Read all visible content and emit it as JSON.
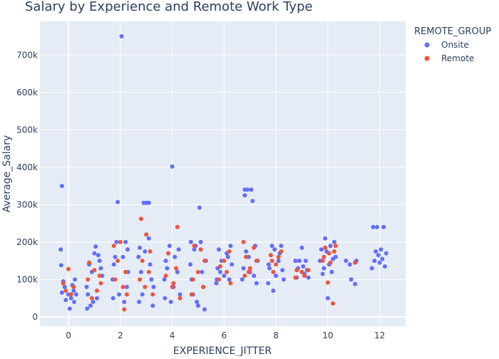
{
  "chart_data": {
    "type": "scatter",
    "title": "Salary by Experience and Remote Work Type",
    "xlabel": "EXPERIENCE_JITTER",
    "ylabel": "Average_Salary",
    "xlim": [
      -1.1,
      13.0
    ],
    "ylim": [
      -25000,
      790000
    ],
    "x_ticks": [
      0,
      2,
      4,
      6,
      8,
      10,
      12
    ],
    "y_ticks": [
      0,
      100000,
      200000,
      300000,
      400000,
      500000,
      600000,
      700000
    ],
    "y_tick_labels": [
      "0",
      "100k",
      "200k",
      "300k",
      "400k",
      "500k",
      "600k",
      "700k"
    ],
    "grid": true,
    "legend_position": "top-right",
    "legend_title": "REMOTE_GROUP",
    "series": [
      {
        "name": "Onsite",
        "color": "#636efa",
        "points": [
          [
            -0.25,
            350000
          ],
          [
            -0.3,
            180000
          ],
          [
            -0.28,
            138000
          ],
          [
            -0.2,
            95000
          ],
          [
            -0.15,
            80000
          ],
          [
            0.0,
            60000
          ],
          [
            0.1,
            50000
          ],
          [
            0.2,
            70000
          ],
          [
            0.25,
            100000
          ],
          [
            -0.1,
            45000
          ],
          [
            0.05,
            22000
          ],
          [
            0.15,
            85000
          ],
          [
            0.3,
            60000
          ],
          [
            -0.25,
            65000
          ],
          [
            0.22,
            40000
          ],
          [
            0.7,
            80000
          ],
          [
            0.8,
            140000
          ],
          [
            0.9,
            120000
          ],
          [
            1.0,
            170000
          ],
          [
            1.05,
            188000
          ],
          [
            1.2,
            150000
          ],
          [
            1.25,
            130000
          ],
          [
            0.75,
            60000
          ],
          [
            0.85,
            30000
          ],
          [
            1.1,
            50000
          ],
          [
            1.3,
            110000
          ],
          [
            0.95,
            40000
          ],
          [
            0.72,
            22000
          ],
          [
            1.15,
            165000
          ],
          [
            1.7,
            100000
          ],
          [
            1.75,
            140000
          ],
          [
            1.8,
            160000
          ],
          [
            1.85,
            200000
          ],
          [
            1.9,
            307000
          ],
          [
            2.05,
            750000
          ],
          [
            2.1,
            160000
          ],
          [
            2.2,
            200000
          ],
          [
            2.3,
            120000
          ],
          [
            1.95,
            60000
          ],
          [
            2.15,
            40000
          ],
          [
            2.25,
            80000
          ],
          [
            1.72,
            50000
          ],
          [
            2.28,
            180000
          ],
          [
            2.7,
            160000
          ],
          [
            2.75,
            185000
          ],
          [
            2.8,
            120000
          ],
          [
            2.85,
            60000
          ],
          [
            2.9,
            305000
          ],
          [
            3.0,
            305000
          ],
          [
            3.1,
            305000
          ],
          [
            3.1,
            210000
          ],
          [
            3.15,
            140000
          ],
          [
            3.2,
            100000
          ],
          [
            3.25,
            30000
          ],
          [
            2.72,
            40000
          ],
          [
            3.28,
            80000
          ],
          [
            2.95,
            175000
          ],
          [
            3.7,
            100000
          ],
          [
            3.75,
            150000
          ],
          [
            3.8,
            130000
          ],
          [
            3.85,
            170000
          ],
          [
            3.9,
            190000
          ],
          [
            4.0,
            402000
          ],
          [
            4.05,
            80000
          ],
          [
            4.1,
            160000
          ],
          [
            4.2,
            120000
          ],
          [
            4.3,
            60000
          ],
          [
            3.72,
            50000
          ],
          [
            4.25,
            180000
          ],
          [
            3.95,
            40000
          ],
          [
            4.7,
            140000
          ],
          [
            4.75,
            100000
          ],
          [
            4.8,
            60000
          ],
          [
            4.85,
            180000
          ],
          [
            4.9,
            190000
          ],
          [
            5.0,
            30000
          ],
          [
            5.05,
            292000
          ],
          [
            5.1,
            200000
          ],
          [
            5.15,
            120000
          ],
          [
            5.2,
            80000
          ],
          [
            5.25,
            20000
          ],
          [
            5.3,
            150000
          ],
          [
            4.72,
            200000
          ],
          [
            4.95,
            40000
          ],
          [
            5.7,
            90000
          ],
          [
            5.75,
            130000
          ],
          [
            5.8,
            180000
          ],
          [
            5.9,
            150000
          ],
          [
            6.0,
            110000
          ],
          [
            6.1,
            170000
          ],
          [
            6.2,
            100000
          ],
          [
            6.25,
            190000
          ],
          [
            6.3,
            140000
          ],
          [
            5.85,
            120000
          ],
          [
            6.15,
            160000
          ],
          [
            5.72,
            100000
          ],
          [
            6.7,
            100000
          ],
          [
            6.75,
            130000
          ],
          [
            6.8,
            340000
          ],
          [
            6.8,
            325000
          ],
          [
            6.9,
            340000
          ],
          [
            6.95,
            160000
          ],
          [
            7.0,
            120000
          ],
          [
            7.05,
            340000
          ],
          [
            7.1,
            310000
          ],
          [
            7.15,
            110000
          ],
          [
            7.2,
            190000
          ],
          [
            7.25,
            90000
          ],
          [
            7.3,
            150000
          ],
          [
            6.85,
            175000
          ],
          [
            7.7,
            90000
          ],
          [
            7.75,
            130000
          ],
          [
            7.8,
            165000
          ],
          [
            7.85,
            190000
          ],
          [
            7.9,
            70000
          ],
          [
            7.95,
            180000
          ],
          [
            8.0,
            110000
          ],
          [
            8.1,
            150000
          ],
          [
            8.2,
            190000
          ],
          [
            8.25,
            125000
          ],
          [
            8.3,
            100000
          ],
          [
            7.72,
            140000
          ],
          [
            8.15,
            170000
          ],
          [
            8.75,
            150000
          ],
          [
            8.8,
            105000
          ],
          [
            8.9,
            150000
          ],
          [
            9.0,
            185000
          ],
          [
            9.05,
            135000
          ],
          [
            9.1,
            115000
          ],
          [
            9.2,
            125000
          ],
          [
            9.25,
            105000
          ],
          [
            8.85,
            130000
          ],
          [
            9.15,
            150000
          ],
          [
            9.7,
            150000
          ],
          [
            9.75,
            180000
          ],
          [
            9.8,
            115000
          ],
          [
            9.9,
            210000
          ],
          [
            10.0,
            50000
          ],
          [
            10.05,
            140000
          ],
          [
            10.1,
            190000
          ],
          [
            10.2,
            155000
          ],
          [
            10.25,
            200000
          ],
          [
            10.3,
            160000
          ],
          [
            9.85,
            130000
          ],
          [
            10.15,
            120000
          ],
          [
            9.95,
            175000
          ],
          [
            10.7,
            150000
          ],
          [
            10.9,
            100000
          ],
          [
            11.05,
            88000
          ],
          [
            11.1,
            150000
          ],
          [
            10.85,
            140000
          ],
          [
            11.7,
            130000
          ],
          [
            11.75,
            240000
          ],
          [
            11.8,
            150000
          ],
          [
            11.85,
            175000
          ],
          [
            11.9,
            240000
          ],
          [
            12.0,
            145000
          ],
          [
            12.05,
            180000
          ],
          [
            12.1,
            155000
          ],
          [
            12.15,
            240000
          ],
          [
            12.2,
            135000
          ],
          [
            12.25,
            170000
          ],
          [
            11.95,
            165000
          ]
        ]
      },
      {
        "name": "Remote",
        "color": "#ef553b",
        "points": [
          [
            -0.2,
            90000
          ],
          [
            0.0,
            128000
          ],
          [
            0.1,
            60000
          ],
          [
            0.2,
            80000
          ],
          [
            -0.1,
            70000
          ],
          [
            0.75,
            100000
          ],
          [
            0.8,
            145000
          ],
          [
            1.0,
            125000
          ],
          [
            1.1,
            70000
          ],
          [
            1.2,
            110000
          ],
          [
            0.9,
            50000
          ],
          [
            1.25,
            90000
          ],
          [
            1.8,
            100000
          ],
          [
            1.9,
            150000
          ],
          [
            2.0,
            200000
          ],
          [
            2.1,
            80000
          ],
          [
            2.15,
            20000
          ],
          [
            2.2,
            120000
          ],
          [
            1.75,
            190000
          ],
          [
            2.25,
            60000
          ],
          [
            2.8,
            262000
          ],
          [
            2.85,
            150000
          ],
          [
            2.95,
            80000
          ],
          [
            3.0,
            220000
          ],
          [
            3.1,
            120000
          ],
          [
            3.15,
            175000
          ],
          [
            3.25,
            60000
          ],
          [
            2.75,
            100000
          ],
          [
            3.75,
            110000
          ],
          [
            3.85,
            170000
          ],
          [
            4.0,
            80000
          ],
          [
            4.05,
            90000
          ],
          [
            4.2,
            240000
          ],
          [
            4.3,
            50000
          ],
          [
            4.15,
            130000
          ],
          [
            4.75,
            60000
          ],
          [
            4.85,
            190000
          ],
          [
            5.0,
            120000
          ],
          [
            5.1,
            180000
          ],
          [
            5.2,
            80000
          ],
          [
            5.25,
            150000
          ],
          [
            4.8,
            100000
          ],
          [
            5.8,
            100000
          ],
          [
            6.0,
            150000
          ],
          [
            6.1,
            120000
          ],
          [
            6.2,
            175000
          ],
          [
            6.25,
            90000
          ],
          [
            5.85,
            135000
          ],
          [
            6.75,
            200000
          ],
          [
            6.85,
            160000
          ],
          [
            6.95,
            120000
          ],
          [
            7.0,
            130000
          ],
          [
            7.15,
            185000
          ],
          [
            7.25,
            150000
          ],
          [
            6.8,
            110000
          ],
          [
            7.8,
            165000
          ],
          [
            7.9,
            120000
          ],
          [
            8.0,
            140000
          ],
          [
            8.1,
            160000
          ],
          [
            8.2,
            175000
          ],
          [
            7.85,
            150000
          ],
          [
            8.8,
            125000
          ],
          [
            9.0,
            120000
          ],
          [
            9.1,
            110000
          ],
          [
            9.25,
            125000
          ],
          [
            8.75,
            105000
          ],
          [
            9.8,
            150000
          ],
          [
            9.9,
            185000
          ],
          [
            10.0,
            92000
          ],
          [
            10.05,
            170000
          ],
          [
            10.1,
            145000
          ],
          [
            10.2,
            36000
          ],
          [
            10.25,
            175000
          ],
          [
            10.3,
            190000
          ],
          [
            9.85,
            160000
          ],
          [
            11.05,
            145000
          ]
        ]
      }
    ]
  }
}
